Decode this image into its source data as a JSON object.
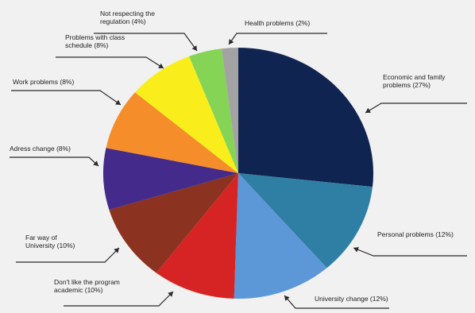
{
  "chart_data": {
    "type": "pie",
    "title": "",
    "start_angle_deg": 0,
    "direction": "clockwise",
    "slices": [
      {
        "key": "econ",
        "lines": [
          "Economic and family",
          "problems (27%)"
        ],
        "value": 27,
        "color": "#0f2450"
      },
      {
        "key": "personal",
        "lines": [
          "Personal problems (12%)"
        ],
        "value": 12,
        "color": "#2e7fa3"
      },
      {
        "key": "univchange",
        "lines": [
          "University change (12%)"
        ],
        "value": 12,
        "color": "#5c97d8"
      },
      {
        "key": "program",
        "lines": [
          "Don't like the program",
          "academic (10%)"
        ],
        "value": 10,
        "color": "#d62424"
      },
      {
        "key": "faraway",
        "lines": [
          "Far way of",
          "University    (10%)"
        ],
        "value": 10,
        "color": "#8c3220"
      },
      {
        "key": "adress",
        "lines": [
          "Adress change (8%)"
        ],
        "value": 8,
        "color": "#442a8a"
      },
      {
        "key": "work",
        "lines": [
          "Work problems (8%)"
        ],
        "value": 8,
        "color": "#f58d2a"
      },
      {
        "key": "schedule",
        "lines": [
          "Problems with class",
          "schedule (8%)"
        ],
        "value": 8,
        "color": "#f9ee1c"
      },
      {
        "key": "regulation",
        "lines": [
          "Not respecting the",
          "regulation (4%)"
        ],
        "value": 4,
        "color": "#85d456"
      },
      {
        "key": "health",
        "lines": [
          "Health problems (2%)"
        ],
        "value": 2,
        "color": "#a3a3a3"
      }
    ]
  }
}
